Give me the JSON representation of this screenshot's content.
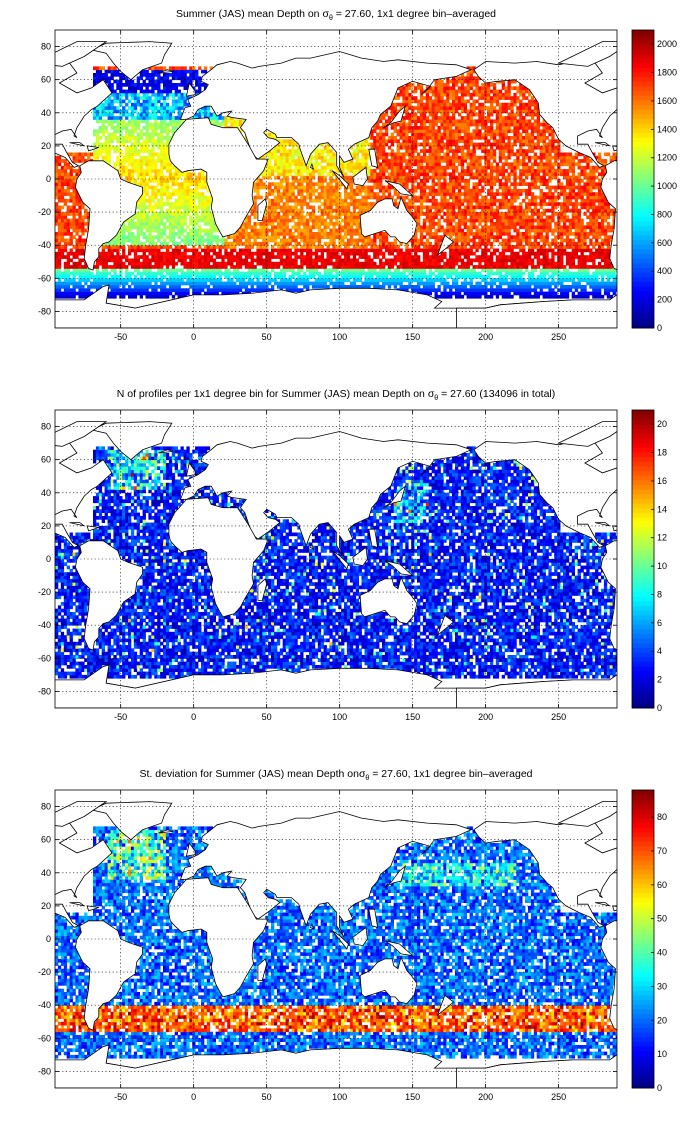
{
  "chart_data": [
    {
      "type": "heatmap",
      "title_prefix": "Summer (JAS) mean Depth on ",
      "title_symbol": "σ",
      "title_sub": "θ",
      "title_suffix": " = 27.60, 1x1 degree bin–averaged",
      "x_ticks": [
        -50,
        0,
        50,
        100,
        150,
        200,
        250
      ],
      "y_ticks": [
        80,
        60,
        40,
        20,
        0,
        -20,
        -40,
        -60,
        -80
      ],
      "xlim": [
        -95,
        290
      ],
      "ylim": [
        -90,
        90
      ],
      "grid": true,
      "colorbar": {
        "ticks": [
          2000,
          1800,
          1600,
          1400,
          1200,
          1000,
          800,
          600,
          400,
          200,
          0
        ],
        "range": [
          0,
          2100
        ]
      },
      "field": "depth"
    },
    {
      "type": "heatmap",
      "title_prefix": "N of profiles per 1x1 degree bin for Summer (JAS) mean Depth on ",
      "title_symbol": "σ",
      "title_sub": "θ",
      "title_suffix": " = 27.60 (134096 in total)",
      "x_ticks": [
        -50,
        0,
        50,
        100,
        150,
        200,
        250
      ],
      "y_ticks": [
        80,
        60,
        40,
        20,
        0,
        -20,
        -40,
        -60,
        -80
      ],
      "xlim": [
        -95,
        290
      ],
      "ylim": [
        -90,
        90
      ],
      "grid": true,
      "colorbar": {
        "ticks": [
          20,
          18,
          16,
          14,
          12,
          10,
          8,
          6,
          4,
          2,
          0
        ],
        "range": [
          0,
          21
        ]
      },
      "field": "count"
    },
    {
      "type": "heatmap",
      "title_prefix": "St. deviation for Summer (JAS) mean Depth on",
      "title_symbol": "σ",
      "title_sub": "θ",
      "title_suffix": " = 27.60, 1x1 degree bin–averaged",
      "x_ticks": [
        -50,
        0,
        50,
        100,
        150,
        200,
        250
      ],
      "y_ticks": [
        80,
        60,
        40,
        20,
        0,
        -20,
        -40,
        -60,
        -80
      ],
      "xlim": [
        -95,
        290
      ],
      "ylim": [
        -90,
        90
      ],
      "grid": true,
      "colorbar": {
        "ticks": [
          80,
          70,
          60,
          50,
          40,
          30,
          20,
          10,
          0
        ],
        "range": [
          0,
          88
        ]
      },
      "field": "std"
    }
  ]
}
